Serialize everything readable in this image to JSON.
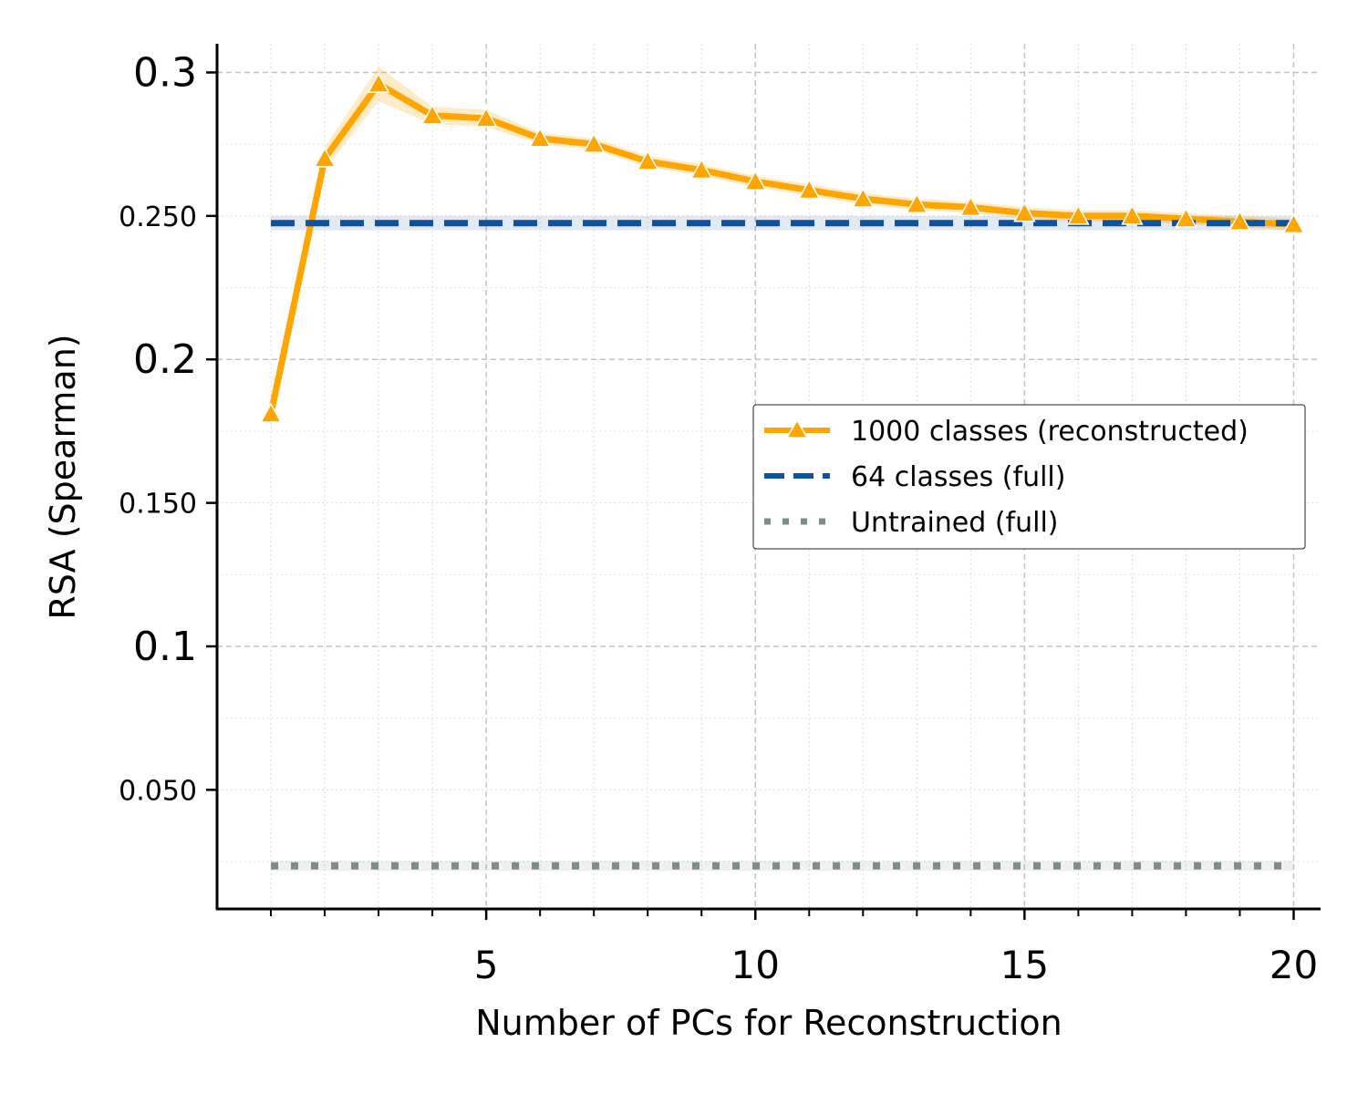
{
  "chart_data": {
    "type": "line",
    "xlabel": "Number of PCs for Reconstruction",
    "ylabel": "RSA (Spearman)",
    "xlim": [
      0.0,
      20.5
    ],
    "ylim": [
      0.0085,
      0.31
    ],
    "x_major_ticks": [
      {
        "value": 5,
        "label": "5"
      },
      {
        "value": 10,
        "label": "10"
      },
      {
        "value": 15,
        "label": "15"
      },
      {
        "value": 20,
        "label": "20"
      }
    ],
    "x_minor_ticks": [
      1,
      2,
      3,
      4,
      6,
      7,
      8,
      9,
      11,
      12,
      13,
      14,
      16,
      17,
      18,
      19
    ],
    "y_ticks": [
      {
        "value": 0.05,
        "label": "0.050",
        "size": "small"
      },
      {
        "value": 0.1,
        "label": "0.1",
        "size": "large"
      },
      {
        "value": 0.15,
        "label": "0.150",
        "size": "small"
      },
      {
        "value": 0.2,
        "label": "0.2",
        "size": "large"
      },
      {
        "value": 0.25,
        "label": "0.250",
        "size": "small"
      },
      {
        "value": 0.3,
        "label": "0.3",
        "size": "large"
      }
    ],
    "grid": true,
    "legend_position": "center-right",
    "series": [
      {
        "name": "1000 classes (reconstructed)",
        "color": "#FFA500",
        "style": "solid",
        "marker": "triangle",
        "x": [
          1,
          2,
          3,
          4,
          5,
          6,
          7,
          8,
          9,
          10,
          11,
          12,
          13,
          14,
          15,
          16,
          17,
          18,
          19,
          20
        ],
        "values": [
          0.181,
          0.27,
          0.296,
          0.285,
          0.284,
          0.277,
          0.275,
          0.269,
          0.266,
          0.262,
          0.259,
          0.256,
          0.254,
          0.253,
          0.251,
          0.25,
          0.25,
          0.249,
          0.248,
          0.247
        ],
        "band_halfwidth": [
          0.006,
          0.004,
          0.006,
          0.003,
          0.003,
          0.002,
          0.002,
          0.002,
          0.002,
          0.002,
          0.002,
          0.002,
          0.002,
          0.002,
          0.002,
          0.002,
          0.002,
          0.002,
          0.002,
          0.002
        ]
      },
      {
        "name": "64 classes (full)",
        "color": "#0B52A0",
        "style": "dashed",
        "x": [
          1,
          20
        ],
        "values": [
          0.2475,
          0.2475
        ],
        "band_halfwidth": [
          0.0025,
          0.0025
        ]
      },
      {
        "name": "Untrained (full)",
        "color": "#7F8C8D",
        "style": "dotted",
        "x": [
          1,
          20
        ],
        "values": [
          0.0235,
          0.0235
        ],
        "band_halfwidth": [
          0.0018,
          0.0018
        ]
      }
    ]
  }
}
